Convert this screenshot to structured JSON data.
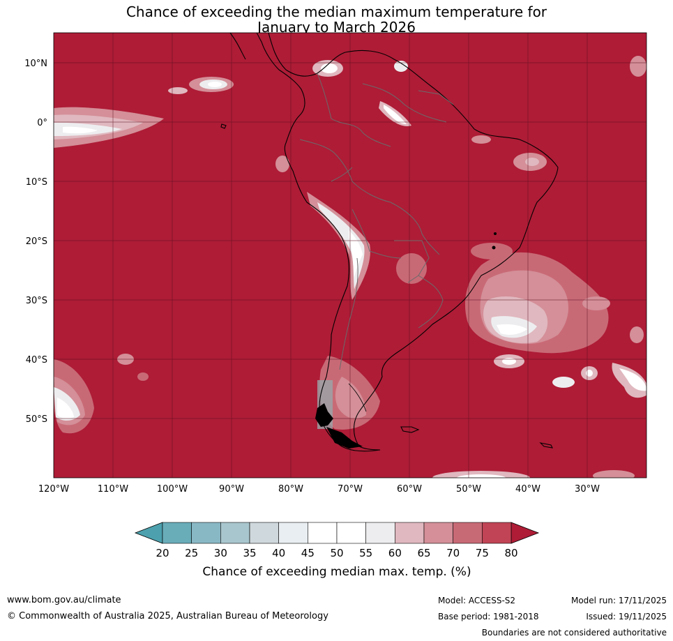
{
  "title": {
    "line1": "Chance of exceeding the median maximum temperature for",
    "line2": "January to March 2026"
  },
  "map": {
    "lat_labels": [
      "10°N",
      "0°",
      "10°S",
      "20°S",
      "30°S",
      "40°S",
      "50°S"
    ],
    "lon_labels": [
      "120°W",
      "110°W",
      "100°W",
      "90°W",
      "80°W",
      "70°W",
      "60°W",
      "50°W",
      "40°W",
      "30°W"
    ],
    "extent": {
      "lon": [
        -120,
        -20
      ],
      "lat": [
        -60,
        15
      ]
    },
    "ocean_land_color": "#ae1c36",
    "grid_color": "#5a1020"
  },
  "colorbar": {
    "ticks": [
      "20",
      "25",
      "30",
      "35",
      "40",
      "45",
      "50",
      "55",
      "60",
      "65",
      "70",
      "75",
      "80"
    ],
    "colors": [
      "#69adb9",
      "#89b8c5",
      "#a8c6cd",
      "#cfd8dc",
      "#e8eef1",
      "#ffffff",
      "#ffffff",
      "#ededef",
      "#e0b8bf",
      "#d48f98",
      "#c86a76",
      "#c04455"
    ],
    "low_color": "#4da1ae",
    "high_color": "#ae1c36",
    "label": "Chance of exceeding median max. temp. (%)"
  },
  "footer": {
    "website": "www.bom.gov.au/climate",
    "copyright": "© Commonwealth of Australia 2025, Australian Bureau of Meteorology",
    "model": "Model: ACCESS-S2",
    "base_period": "Base period: 1981-2018",
    "model_run": "Model run: 17/11/2025",
    "issued": "Issued: 19/11/2025",
    "disclaimer": "Boundaries are not considered authoritative"
  }
}
